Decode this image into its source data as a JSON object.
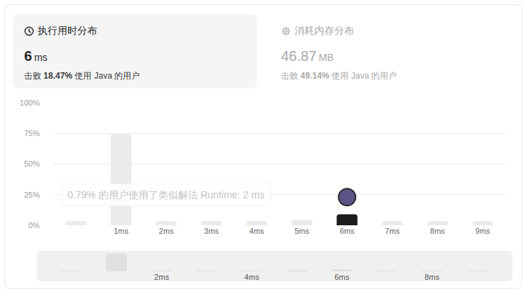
{
  "panels": [
    {
      "title": "执行用时分布",
      "value": "6",
      "unit": "ms",
      "caption": [
        "击败",
        "18.47%",
        "使用 Java 的用户"
      ],
      "active": true
    },
    {
      "title": "消耗内存分布",
      "value": "46.87",
      "unit": "MB",
      "caption": [
        "击败",
        "49.14%",
        "使用 Java 的用户"
      ],
      "active": false
    }
  ],
  "chart_data": [
    {
      "type": "bar",
      "categories": [
        null,
        "1ms",
        "2ms",
        "3ms",
        "4ms",
        "5ms",
        "6ms",
        "7ms",
        "8ms",
        "9ms"
      ],
      "values": [
        3.5,
        74.5,
        3.5,
        3.5,
        3.5,
        4.5,
        9,
        3.5,
        3.5,
        3.5
      ],
      "colors": [
        "#ebebeb",
        "#ebebeb",
        "#ebebeb",
        "#ebebeb",
        "#ebebeb",
        "#ebebeb",
        "#1c1c1c",
        "#ebebeb",
        "#ebebeb",
        "#ebebeb"
      ],
      "ylim": [
        0,
        100
      ],
      "yticks": [
        {
          "value": 0,
          "label": "0%"
        },
        {
          "value": 25,
          "label": "25%"
        },
        {
          "value": 50,
          "label": "50%"
        },
        {
          "value": 75,
          "label": "75%"
        },
        {
          "value": 100,
          "label": "100%"
        }
      ],
      "grid": true,
      "annotations": [
        {
          "text": "0.79% 的用户使用了类似解法 Runtime: 2 ms",
          "category": "2ms"
        }
      ]
    },
    {
      "type": "bar",
      "categories": [
        null,
        null,
        "2ms",
        null,
        "4ms",
        null,
        "6ms",
        null,
        "8ms",
        null
      ],
      "values": [
        3.5,
        74.5,
        3.5,
        3.5,
        3.5,
        4.5,
        9,
        3.5,
        3.5,
        3.5
      ],
      "color": "#e0e0e0",
      "ylim": [
        0,
        80
      ],
      "grid": false,
      "tick_labels": "x"
    }
  ]
}
